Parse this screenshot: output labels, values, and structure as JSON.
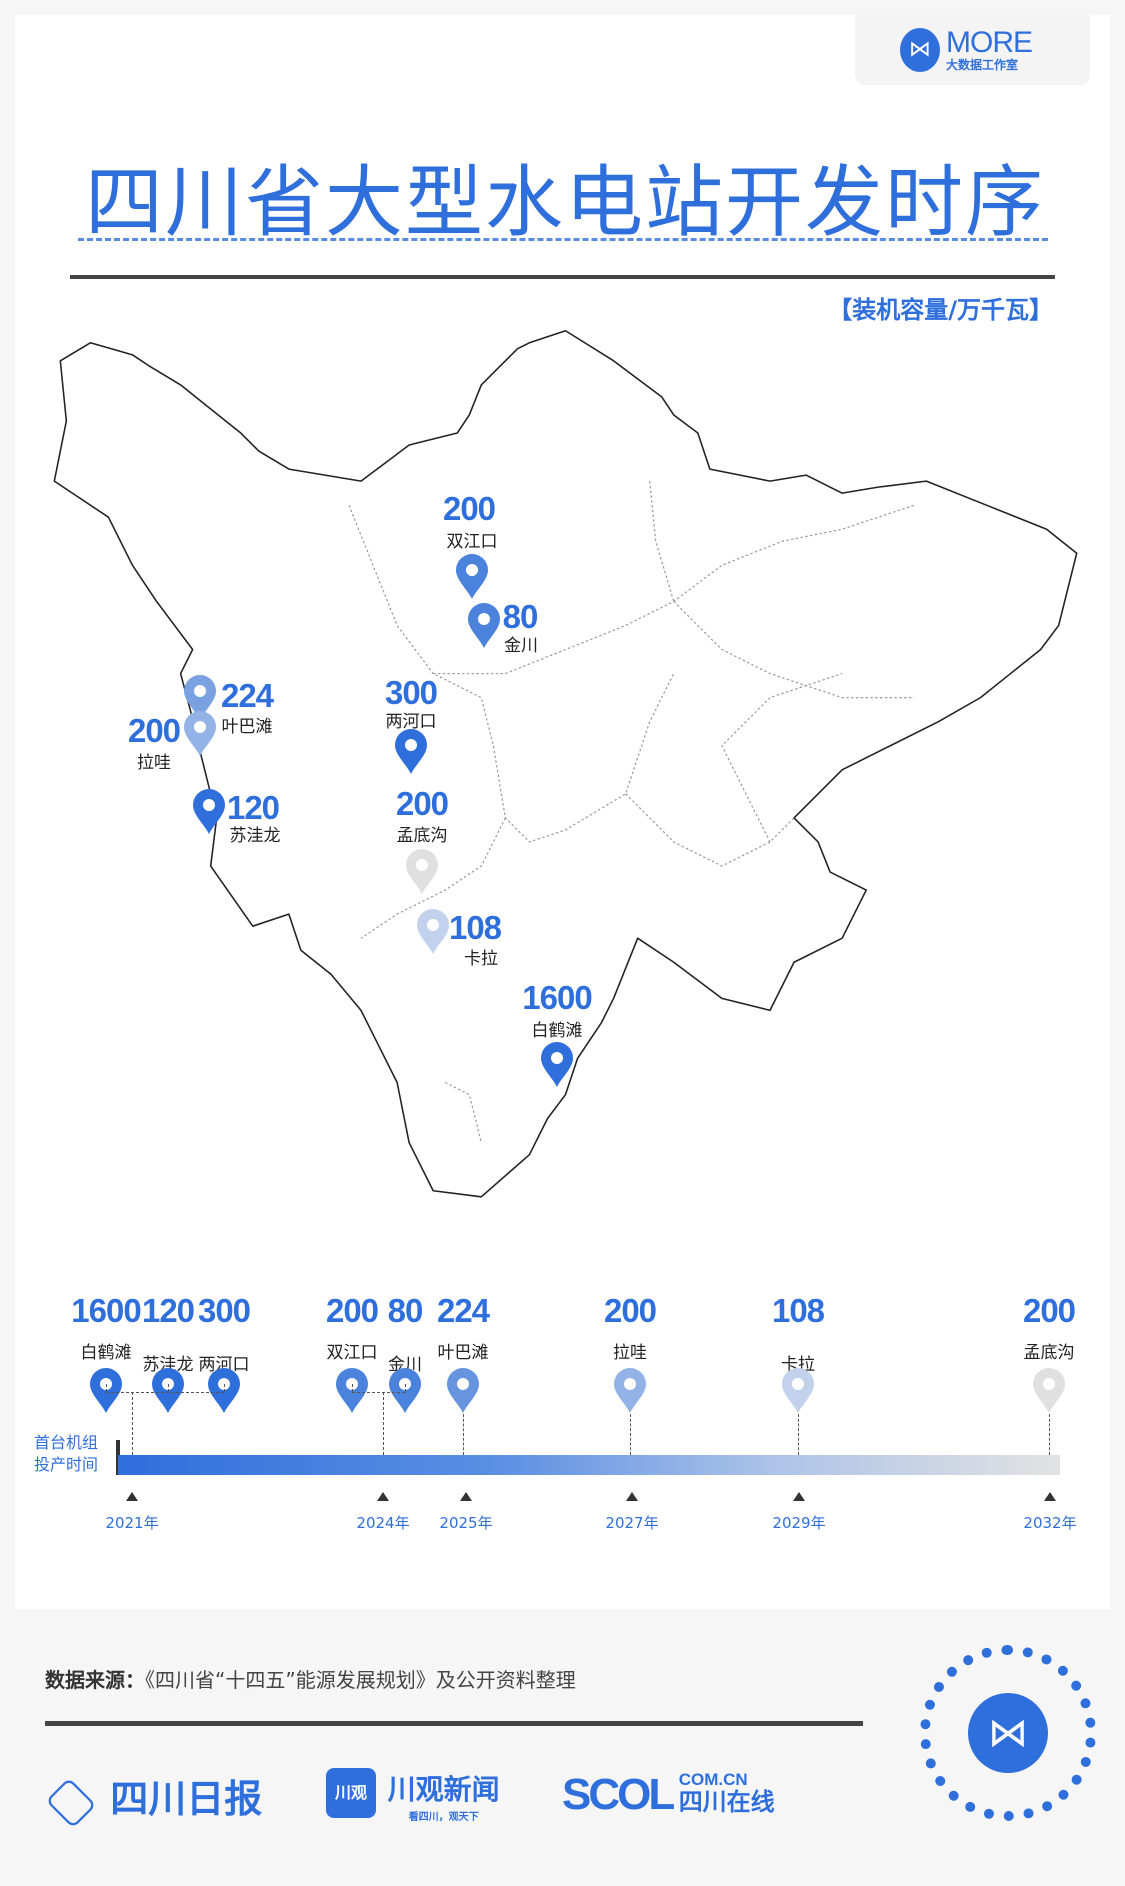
{
  "brand": {
    "logo_text": "MORE",
    "logo_sub": "大数据工作室"
  },
  "title": "四川省大型水电站开发时序",
  "unit_label": "【装机容量/万千瓦】",
  "colors": {
    "accent": "#2f6fdc",
    "light": "#a9c2ea",
    "grey": "#e0e0e0"
  },
  "chart_data": {
    "type": "map+timeline",
    "unit": "万千瓦",
    "stations": [
      {
        "name": "双江口",
        "capacity": "200",
        "year": "2024年"
      },
      {
        "name": "金川",
        "capacity": "80",
        "year": "2024年"
      },
      {
        "name": "叶巴滩",
        "capacity": "224",
        "year": "2025年"
      },
      {
        "name": "拉哇",
        "capacity": "200",
        "year": "2027年"
      },
      {
        "name": "苏洼龙",
        "capacity": "120",
        "year": "2021年"
      },
      {
        "name": "两河口",
        "capacity": "300",
        "year": "2021年"
      },
      {
        "name": "孟底沟",
        "capacity": "200",
        "year": "2032年"
      },
      {
        "name": "卡拉",
        "capacity": "108",
        "year": "2029年"
      },
      {
        "name": "白鹤滩",
        "capacity": "1600",
        "year": "2021年"
      }
    ],
    "timeline_order": [
      {
        "name": "白鹤滩",
        "capacity": "1600"
      },
      {
        "name": "苏洼龙",
        "capacity": "120"
      },
      {
        "name": "两河口",
        "capacity": "300"
      },
      {
        "name": "双江口",
        "capacity": "200"
      },
      {
        "name": "金川",
        "capacity": "80"
      },
      {
        "name": "叶巴滩",
        "capacity": "224"
      },
      {
        "name": "拉哇",
        "capacity": "200"
      },
      {
        "name": "卡拉",
        "capacity": "108"
      },
      {
        "name": "孟底沟",
        "capacity": "200"
      }
    ],
    "years": [
      "2021年",
      "2024年",
      "2025年",
      "2027年",
      "2029年",
      "2032年"
    ],
    "timeline_label_1": "首台机组",
    "timeline_label_2": "投产时间"
  },
  "footer": {
    "source_label": "数据来源：",
    "source_text": "《四川省“十四五”能源发展规划》及公开资料整理",
    "logos": [
      "四川日报",
      "川观新闻",
      "看四川，观天下",
      "SCOL",
      "COM.CN",
      "四川在线"
    ]
  }
}
